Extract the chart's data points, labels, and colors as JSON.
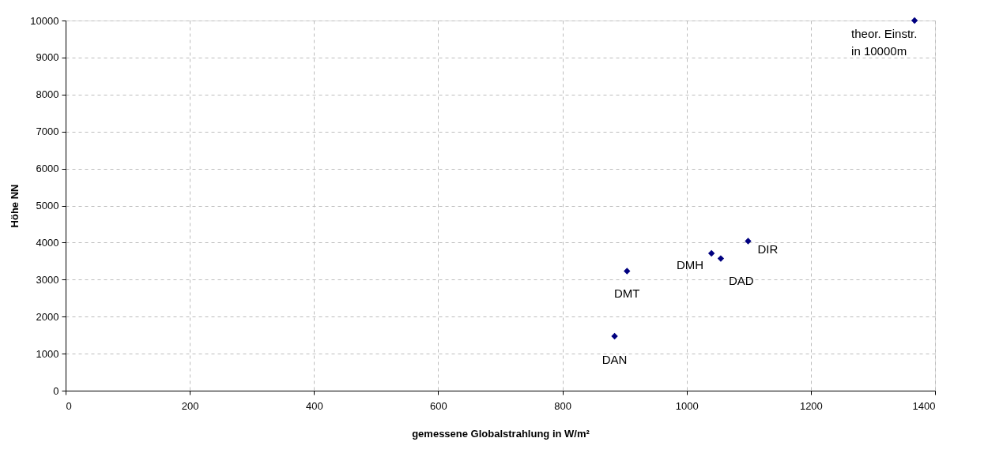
{
  "chart_data": {
    "type": "scatter",
    "xlabel": "gemessene Globalstrahlung in W/m²",
    "ylabel": "Höhe NN",
    "x": [
      884,
      904,
      1040,
      1055,
      1099,
      1367
    ],
    "series": [
      {
        "color": "#000080",
        "values": [
          1470,
          3230,
          3710,
          3570,
          4040,
          10000
        ]
      }
    ],
    "xlim": [
      0,
      1400
    ],
    "xticks": [
      0,
      200,
      400,
      600,
      800,
      1000,
      1200,
      1400
    ],
    "ylim": [
      0,
      10000
    ],
    "yticks": [
      0,
      1000,
      2000,
      3000,
      4000,
      5000,
      6000,
      7000,
      8000,
      9000,
      10000
    ],
    "grid": true,
    "marker": "diamond",
    "annotations": [
      {
        "text": "DAN",
        "x": 884,
        "y": 1470
      },
      {
        "text": "DMT",
        "x": 904,
        "y": 3230
      },
      {
        "text": "DMH",
        "x": 1040,
        "y": 3710
      },
      {
        "text": "DAD",
        "x": 1055,
        "y": 3570
      },
      {
        "text": "DIR",
        "x": 1099,
        "y": 4040
      },
      {
        "text": "theor. Einstr.\nin 10000m",
        "x": 1367,
        "y": 10000
      }
    ]
  }
}
